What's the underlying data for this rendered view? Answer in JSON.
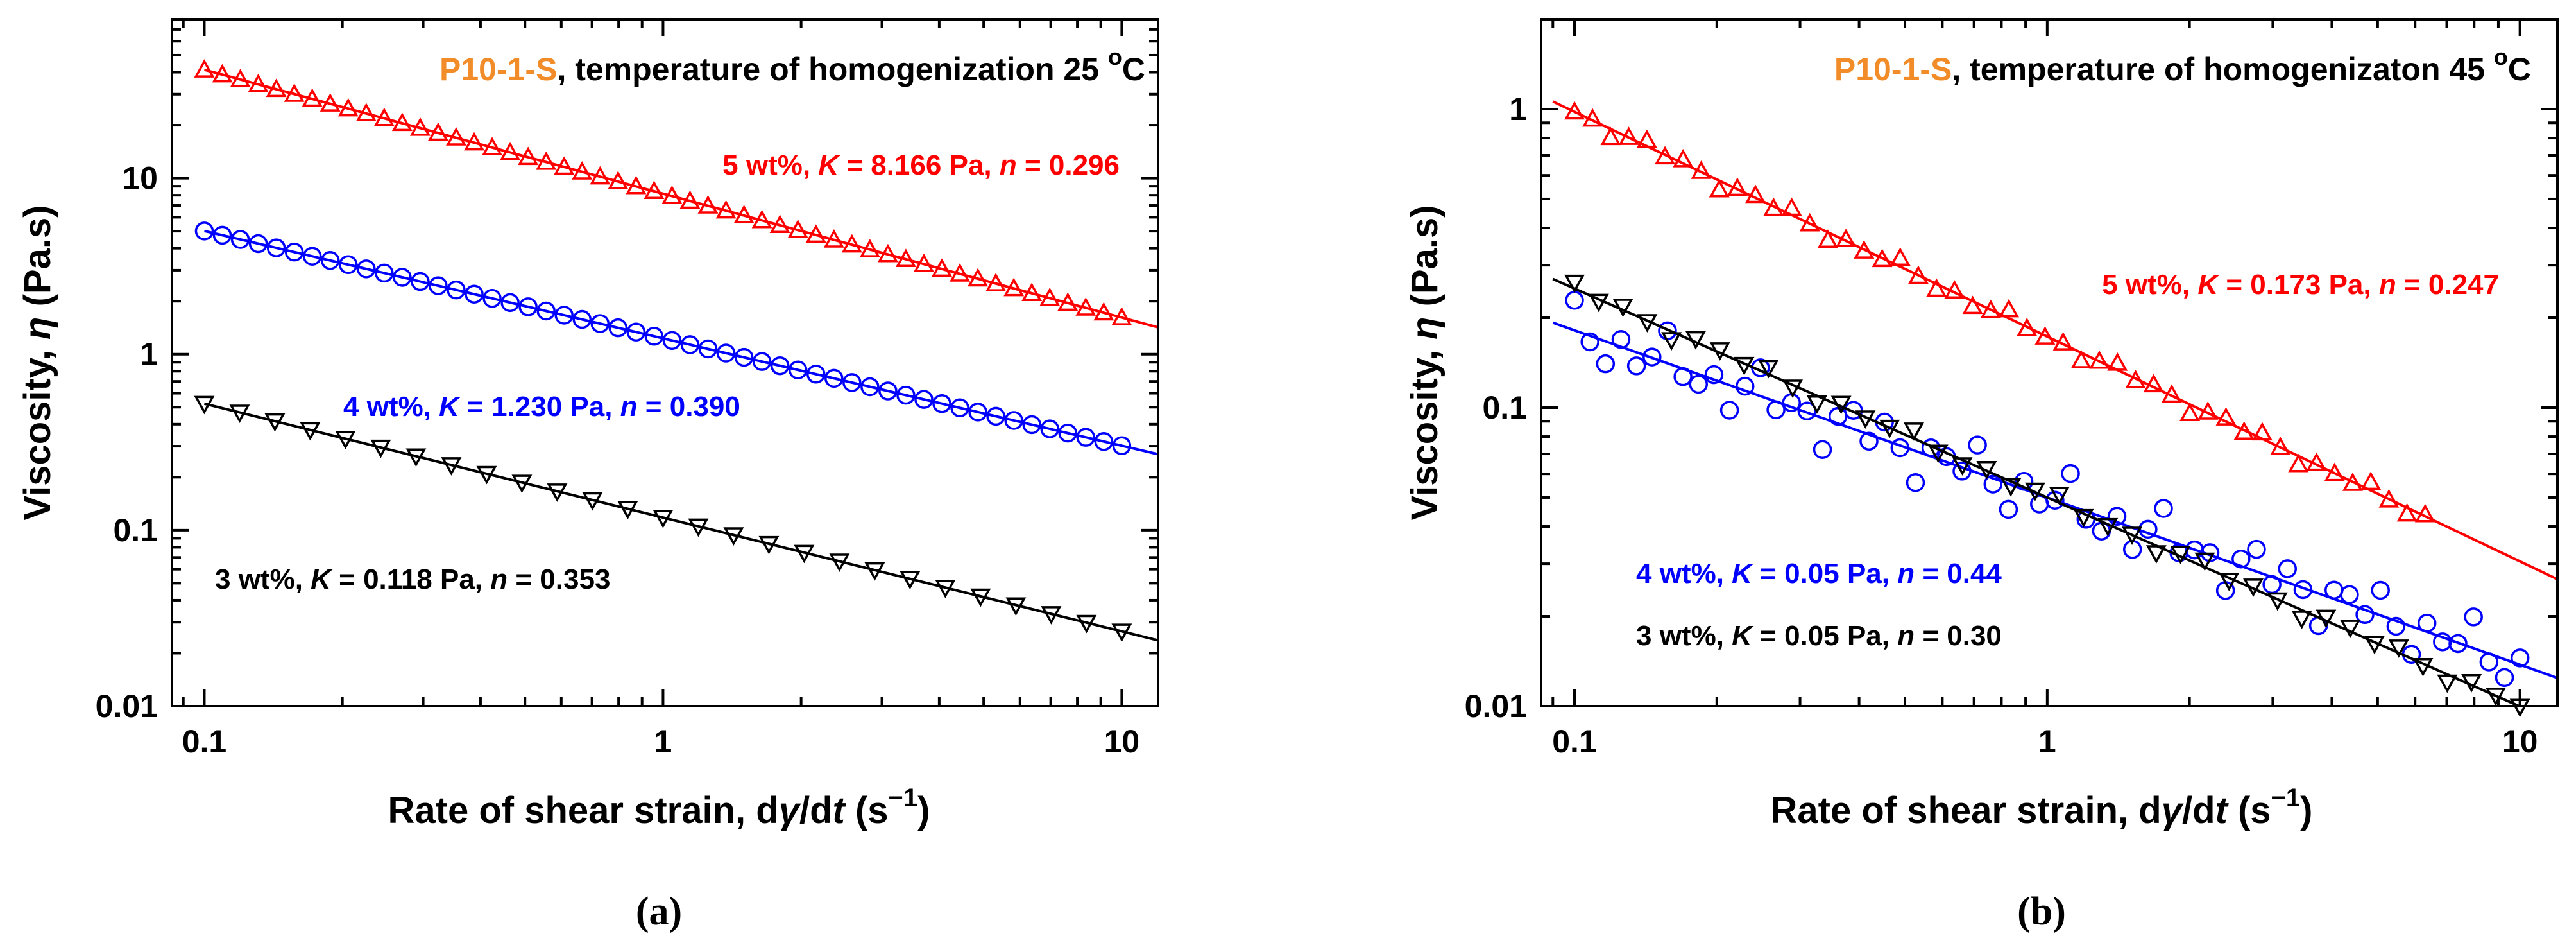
{
  "chart_data": [
    {
      "type": "scatter",
      "panel_label": "(a)",
      "title_sample": "P10-1-S",
      "title_rest": ", temperature of homogenization 25 ",
      "title_degree": "o",
      "title_unit": "C",
      "xlabel": {
        "prefix": "Rate of shear strain, d",
        "gamma": "γ",
        "mid": "/d",
        "t": "t",
        "unit_open": " (s",
        "exp": "−1",
        "unit_close": ")"
      },
      "ylabel": {
        "prefix": "Viscosity, ",
        "eta": "η",
        "suffix": " (Pa.s)"
      },
      "xscale": "log",
      "yscale": "log",
      "xlim": [
        0.085,
        12
      ],
      "ylim": [
        0.01,
        80
      ],
      "xticks": [
        0.1,
        1,
        10
      ],
      "xtick_labels": [
        "0.1",
        "1",
        "10"
      ],
      "yticks": [
        0.01,
        0.1,
        1,
        10
      ],
      "ytick_labels": [
        "0.01",
        "0.1",
        "1",
        "10"
      ],
      "colors": {
        "title_sample": "#f28c28",
        "title_rest": "#000000"
      },
      "series": [
        {
          "name": "5 wt%",
          "marker": "triangle-up",
          "color": "#ff0000",
          "K": 8.166,
          "n": 0.296,
          "x_range": [
            0.1,
            10
          ],
          "n_points": 52,
          "scatter": 0,
          "fit_range": [
            0.1,
            12
          ],
          "label": {
            "pre": "5 wt%, ",
            "K": "K",
            "mid": " = 8.166 Pa, ",
            "n": "n",
            "post": " = 0.296"
          }
        },
        {
          "name": "4 wt%",
          "marker": "circle",
          "color": "#0000ff",
          "K": 1.23,
          "n": 0.39,
          "x_range": [
            0.1,
            10
          ],
          "n_points": 52,
          "scatter": 0,
          "fit_range": [
            0.1,
            12
          ],
          "label": {
            "pre": "4 wt%, ",
            "K": "K",
            "mid": " = 1.230 Pa, ",
            "n": "n",
            "post": " = 0.390"
          }
        },
        {
          "name": "3 wt%",
          "marker": "triangle-down",
          "color": "#000000",
          "K": 0.118,
          "n": 0.353,
          "x_range": [
            0.1,
            10
          ],
          "n_points": 27,
          "scatter": 0,
          "fit_range": [
            0.1,
            12
          ],
          "label": {
            "pre": "3 wt%, ",
            "K": "K",
            "mid": " = 0.118 Pa, ",
            "n": "n",
            "post": " = 0.353"
          }
        }
      ]
    },
    {
      "type": "scatter",
      "panel_label": "(b)",
      "title_sample": "P10-1-S",
      "title_rest": ", temperature of homogenizaton 45 ",
      "title_degree": "o",
      "title_unit": "C",
      "xlabel": {
        "prefix": "Rate of shear strain, d",
        "gamma": "γ",
        "mid": "/d",
        "t": "t",
        "unit_open": " (s",
        "exp": "−1",
        "unit_close": ")"
      },
      "ylabel": {
        "prefix": "Viscosity, ",
        "eta": "η",
        "suffix": " (Pa.s)"
      },
      "xscale": "log",
      "yscale": "log",
      "xlim": [
        0.085,
        12
      ],
      "ylim": [
        0.01,
        2
      ],
      "xticks": [
        0.1,
        1,
        10
      ],
      "xtick_labels": [
        "0.1",
        "1",
        "10"
      ],
      "yticks": [
        0.01,
        0.1,
        1
      ],
      "ytick_labels": [
        "0.01",
        "0.1",
        "1"
      ],
      "colors": {
        "title_sample": "#f28c28",
        "title_rest": "#000000"
      },
      "series": [
        {
          "name": "5 wt%",
          "marker": "triangle-up",
          "color": "#ff0000",
          "K": 0.173,
          "n": 0.247,
          "x_range": [
            0.1,
            6.3
          ],
          "n_points": 48,
          "scatter": 0.03,
          "fit_range": [
            0.09,
            12
          ],
          "label": {
            "pre": "5 wt%, ",
            "K": "K",
            "mid": " = 0.173 Pa, ",
            "n": "n",
            "post": " = 0.247"
          }
        },
        {
          "name": "4 wt%",
          "marker": "circle",
          "color": "#0000ff",
          "K": 0.05,
          "n": 0.44,
          "x_range": [
            0.1,
            10
          ],
          "n_points": 62,
          "scatter": 0.11,
          "fit_range": [
            0.09,
            12
          ],
          "label": {
            "pre": "4 wt%, ",
            "K": "K",
            "mid": " = 0.05 Pa, ",
            "n": "n",
            "post": " = 0.44"
          }
        },
        {
          "name": "3 wt%",
          "marker": "triangle-down",
          "color": "#000000",
          "K": 0.05,
          "n": 0.3,
          "x_range": [
            0.1,
            10
          ],
          "n_points": 40,
          "scatter": 0.03,
          "fit_range": [
            0.09,
            12
          ],
          "label": {
            "pre": "3 wt%, ",
            "K": "K",
            "mid": " = 0.05 Pa, ",
            "n": "n",
            "post": " = 0.30"
          }
        }
      ]
    }
  ]
}
